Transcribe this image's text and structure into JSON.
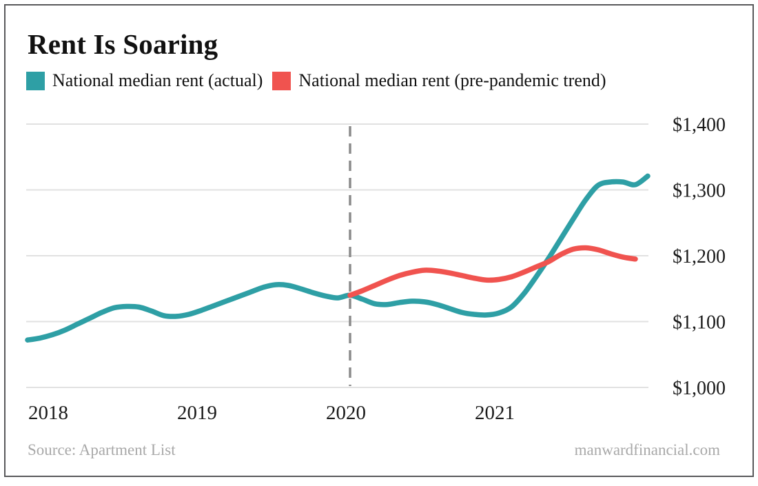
{
  "header": {
    "title": "Rent Is Soaring"
  },
  "legend": {
    "items": [
      {
        "label": "National median rent (actual)",
        "color": "#2E9FA5"
      },
      {
        "label": "National median rent (pre-pandemic trend)",
        "color": "#F0534F"
      }
    ]
  },
  "chart_data": {
    "type": "line",
    "title": "Rent Is Soaring",
    "x_unit": "month",
    "x_start": "2018-01",
    "x_end": "2022-03",
    "ylim": [
      1000,
      1400
    ],
    "grid": "horizontal",
    "gridline_color": "#E1E1E1",
    "axis_text_color": "#1a1a1a",
    "yticks": [
      {
        "value": 1000,
        "label": "$1,000"
      },
      {
        "value": 1100,
        "label": "$1,100"
      },
      {
        "value": 1200,
        "label": "$1,200"
      },
      {
        "value": 1300,
        "label": "$1,300"
      },
      {
        "value": 1400,
        "label": "$1,400"
      }
    ],
    "xticks": [
      {
        "month_index": 0,
        "label": "2018"
      },
      {
        "month_index": 12,
        "label": "2019"
      },
      {
        "month_index": 24,
        "label": "2020"
      },
      {
        "month_index": 36,
        "label": "2021"
      }
    ],
    "divider": {
      "month_index": 26,
      "style": "dashed",
      "color": "#8C8C8C"
    },
    "series": [
      {
        "name": "National median rent (actual)",
        "color": "#2E9FA5",
        "start_month_index": 0,
        "values": [
          1072,
          1075,
          1080,
          1087,
          1096,
          1105,
          1114,
          1121,
          1123,
          1122,
          1116,
          1109,
          1108,
          1111,
          1117,
          1124,
          1131,
          1138,
          1145,
          1152,
          1156,
          1155,
          1150,
          1144,
          1139,
          1136,
          1140,
          1134,
          1127,
          1126,
          1129,
          1131,
          1130,
          1126,
          1120,
          1114,
          1111,
          1110,
          1113,
          1122,
          1142,
          1168,
          1196,
          1226,
          1256,
          1285,
          1307,
          1312,
          1312,
          1308,
          1321
        ]
      },
      {
        "name": "National median rent (pre-pandemic trend)",
        "color": "#F0534F",
        "start_month_index": 26,
        "values": [
          1140,
          1147,
          1155,
          1163,
          1170,
          1175,
          1178,
          1177,
          1174,
          1170,
          1166,
          1163,
          1164,
          1168,
          1175,
          1183,
          1191,
          1202,
          1210,
          1212,
          1209,
          1203,
          1198,
          1195
        ]
      }
    ]
  },
  "footer": {
    "source": "Source: Apartment List",
    "site": "manwardfinancial.com"
  }
}
